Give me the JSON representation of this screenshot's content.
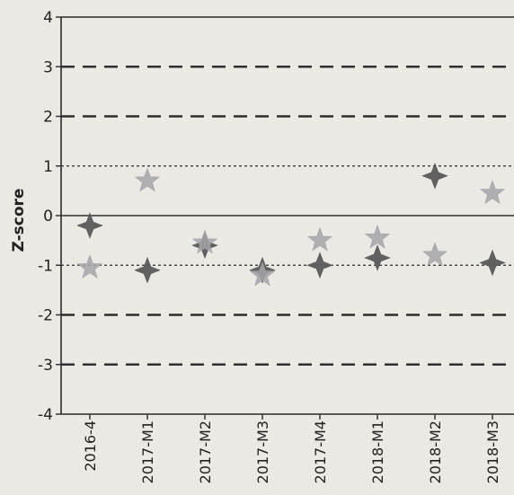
{
  "chart_data": {
    "type": "scatter",
    "title": "",
    "xlabel": "",
    "ylabel": "Z-score",
    "ylim": [
      -4,
      4
    ],
    "yticks": [
      4,
      3,
      2,
      1,
      0,
      -1,
      -2,
      -3,
      -4
    ],
    "categories": [
      "2016-4",
      "2017-M1",
      "2017-M2",
      "2017-M3",
      "2017-M4",
      "2018-M1",
      "2018-M2",
      "2018-M3"
    ],
    "series": [
      {
        "marker": "diamond-star",
        "color": "#5a5a5a",
        "values": [
          -0.2,
          -1.1,
          -0.6,
          -1.1,
          -1.0,
          -0.85,
          0.8,
          -0.95
        ]
      },
      {
        "marker": "star",
        "color": "#a5a5aa",
        "values": [
          -1.05,
          0.7,
          -0.55,
          -1.2,
          -0.5,
          -0.45,
          -0.8,
          0.45
        ]
      }
    ],
    "reference_lines": [
      {
        "y": 3,
        "style": "long-dash"
      },
      {
        "y": 2,
        "style": "long-dash"
      },
      {
        "y": 1,
        "style": "dotted"
      },
      {
        "y": 0,
        "style": "solid"
      },
      {
        "y": -1,
        "style": "dotted"
      },
      {
        "y": -2,
        "style": "long-dash"
      },
      {
        "y": -3,
        "style": "long-dash"
      }
    ],
    "grid": false,
    "legend": "none"
  }
}
